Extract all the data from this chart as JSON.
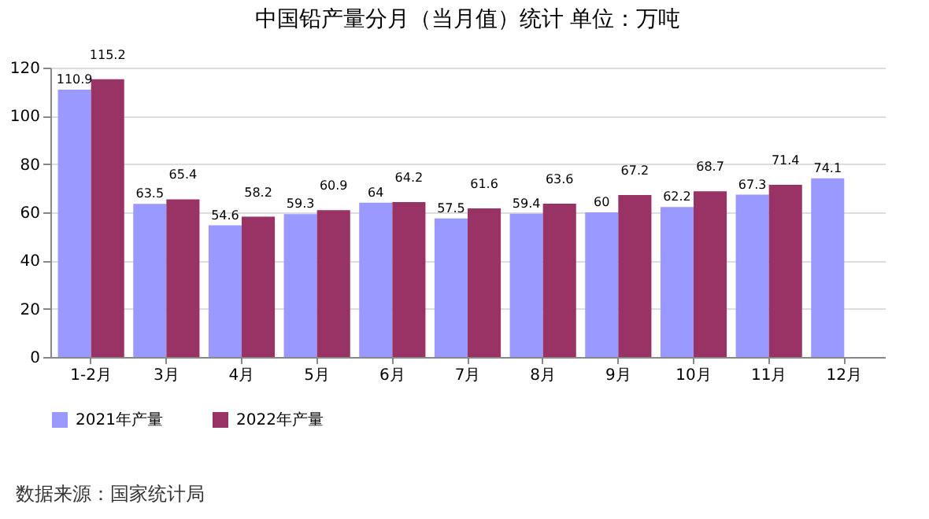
{
  "chart_data": {
    "type": "bar",
    "title": "中国铅产量分月（当月值）统计 单位：万吨",
    "categories": [
      "1-2月",
      "3月",
      "4月",
      "5月",
      "6月",
      "7月",
      "8月",
      "9月",
      "10月",
      "11月",
      "12月"
    ],
    "series": [
      {
        "name": "2021年产量",
        "color": "#9999ff",
        "values": [
          110.9,
          63.5,
          54.6,
          59.3,
          64,
          57.5,
          59.4,
          60,
          62.2,
          67.3,
          74.1
        ]
      },
      {
        "name": "2022年产量",
        "color": "#993366",
        "values": [
          115.2,
          65.4,
          58.2,
          60.9,
          64.2,
          61.6,
          63.6,
          67.2,
          68.7,
          71.4,
          null
        ]
      }
    ],
    "ylim": [
      0,
      120
    ],
    "yticks": [
      0,
      20,
      40,
      60,
      80,
      100,
      120
    ],
    "grid": "y",
    "legend": "bottom",
    "data_labels": true,
    "annotations": [
      "数据来源：国家统计局"
    ]
  }
}
